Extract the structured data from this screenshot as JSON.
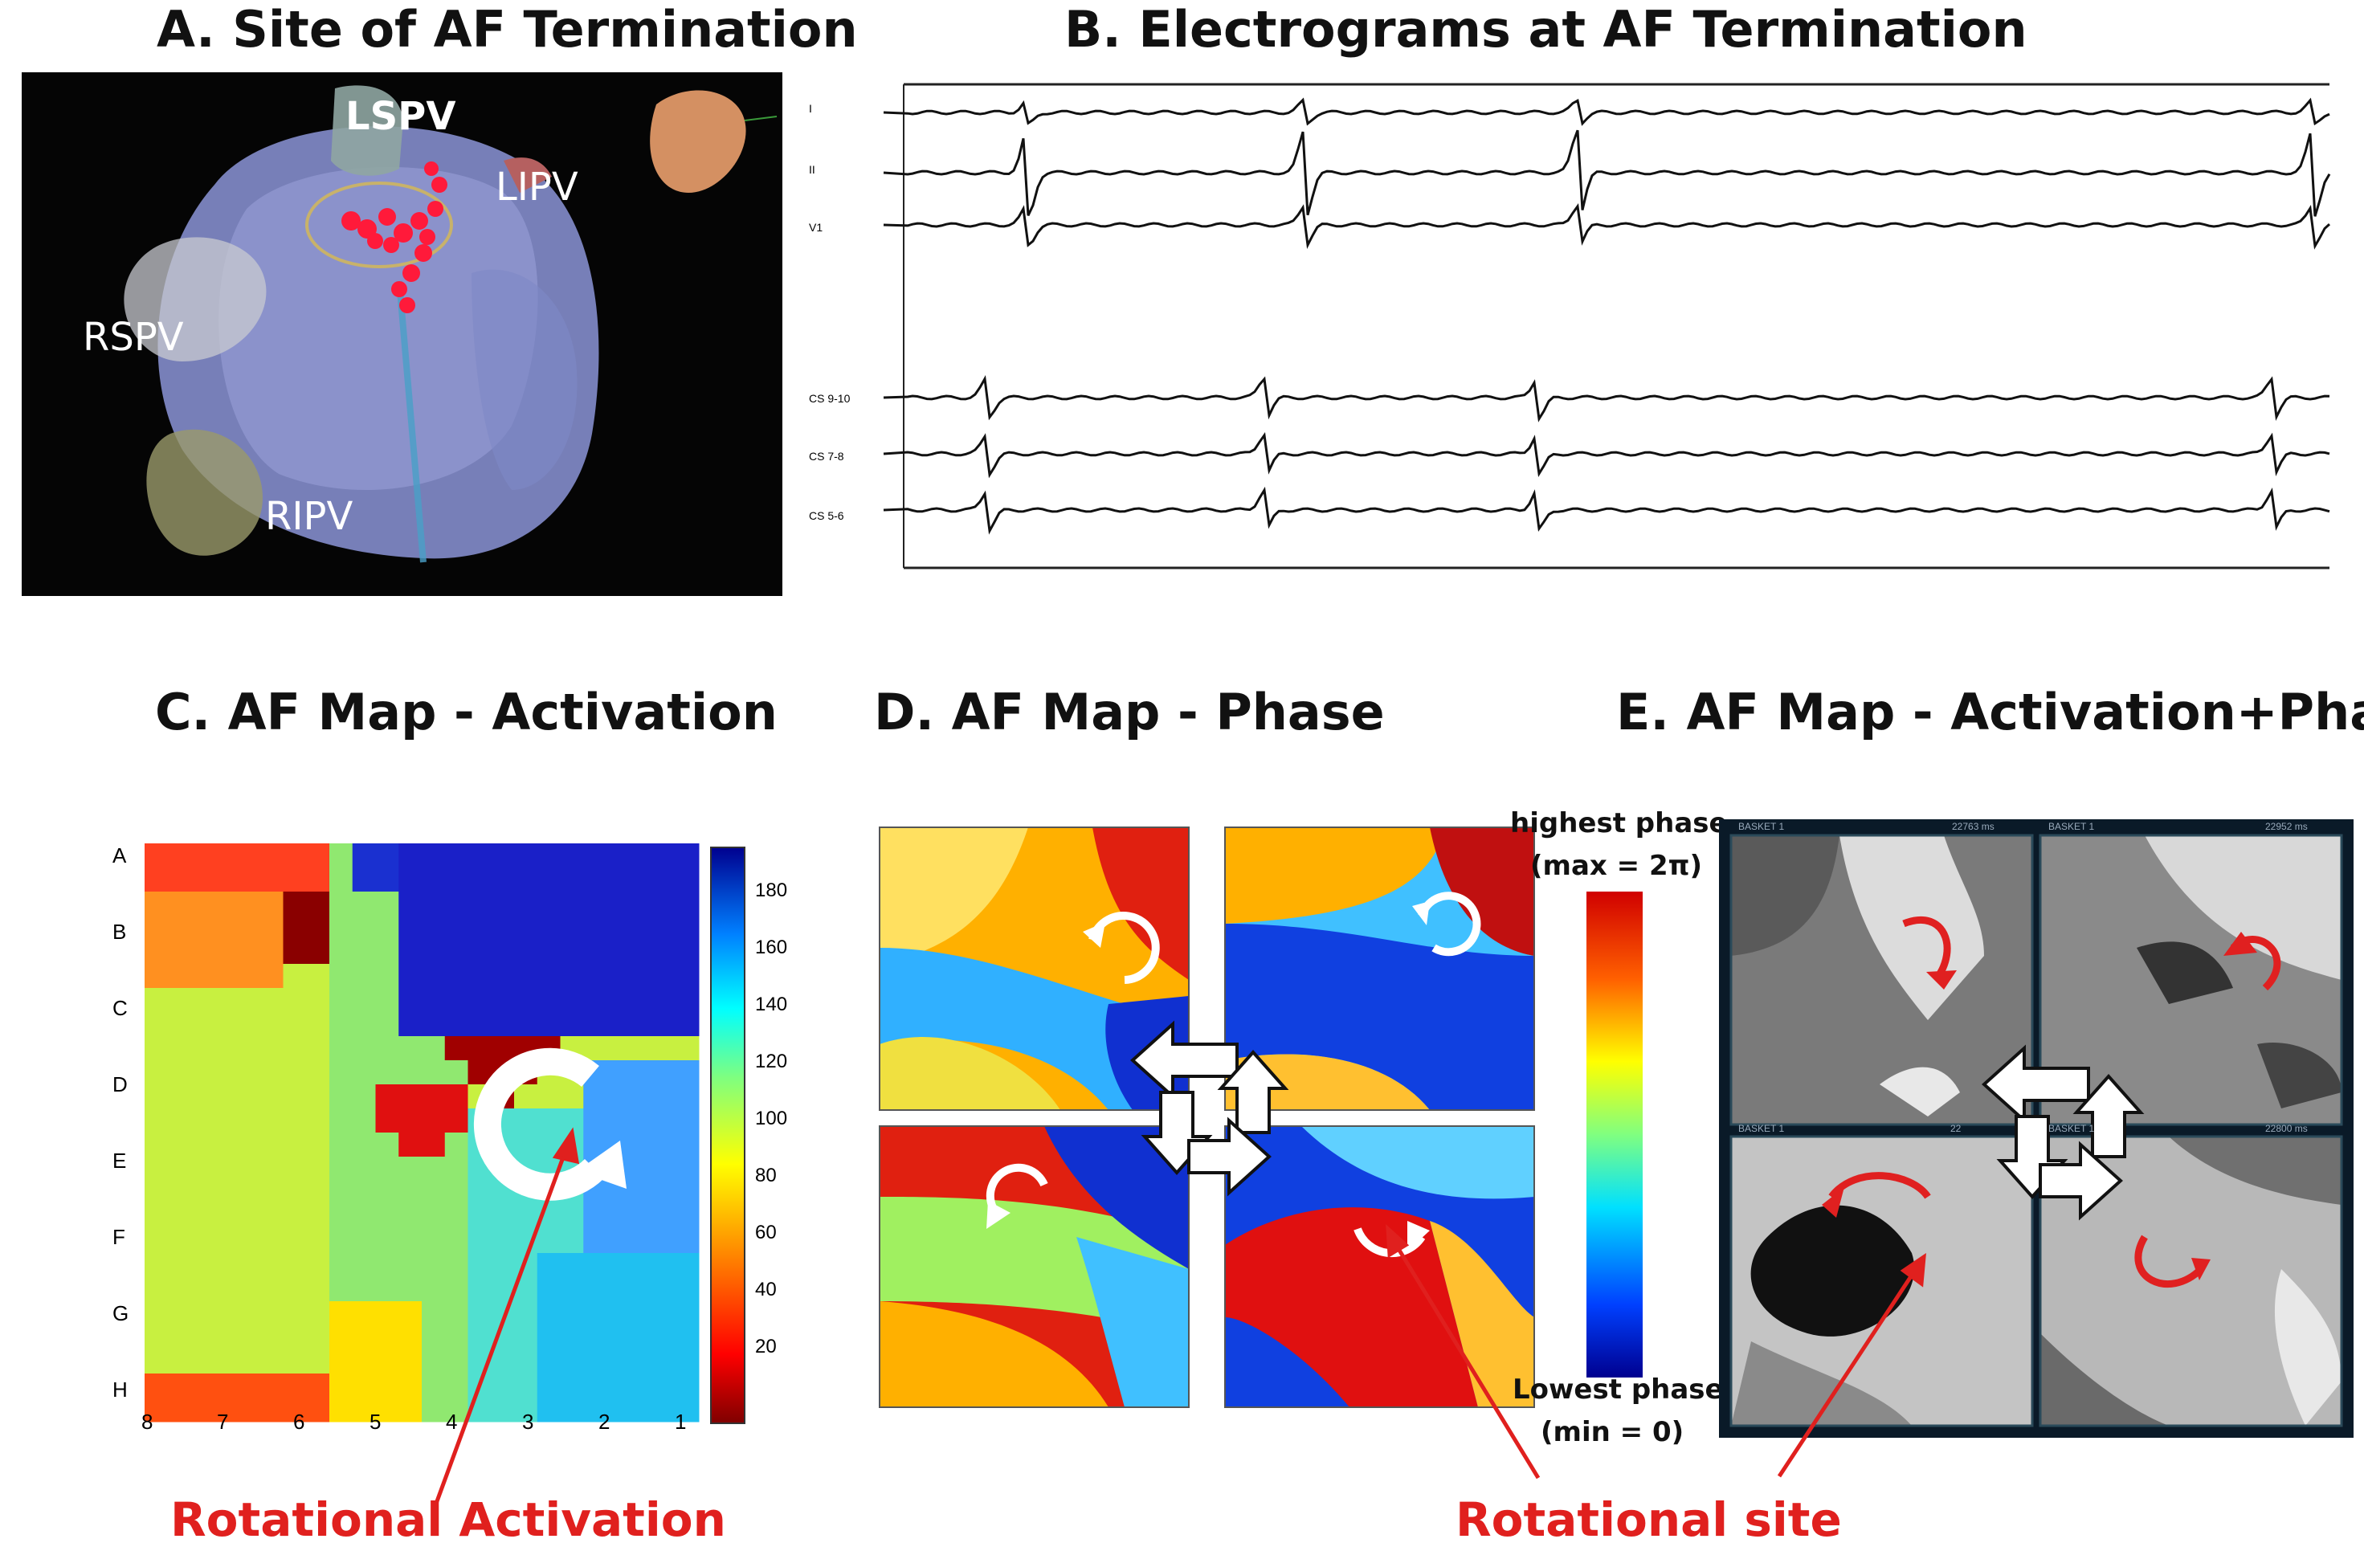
{
  "panels": {
    "a_title": "A. Site of AF Termination",
    "b_title": "B. Electrograms at AF Termination",
    "c_title": "C. AF Map - Activation",
    "d_title": "D. AF Map - Phase",
    "e_title": "E. AF Map - Activation+Phase"
  },
  "anatomy": {
    "lspv": "LSPV",
    "lipv": "LIPV",
    "rspv": "RSPV",
    "ripv": "RIPV"
  },
  "electrograms": {
    "leads": [
      "I",
      "II",
      "V1",
      "CS 9-10",
      "CS 7-8",
      "CS 5-6"
    ]
  },
  "activation_map": {
    "rows": [
      "A",
      "B",
      "C",
      "D",
      "E",
      "F",
      "G",
      "H"
    ],
    "cols": [
      "8",
      "7",
      "6",
      "5",
      "4",
      "3",
      "2",
      "1"
    ],
    "colorbar_ticks": [
      "180",
      "160",
      "140",
      "120",
      "100",
      "80",
      "60",
      "40",
      "20"
    ],
    "annotation": "Rotational Activation"
  },
  "phase_map": {
    "legend_top_1": "highest phase",
    "legend_top_2": "(max = 2π)",
    "legend_bottom_1": "Lowest phase",
    "legend_bottom_2": "(min = 0)",
    "annotation": "Rotational site"
  },
  "combined_map": {
    "basket_label": "BASKET 1",
    "times": [
      "22763 ms",
      "22952 ms",
      "22",
      "22800 ms"
    ]
  },
  "colors": {
    "annotation_red": "#e0201e",
    "rotation_red": "#e02020"
  }
}
